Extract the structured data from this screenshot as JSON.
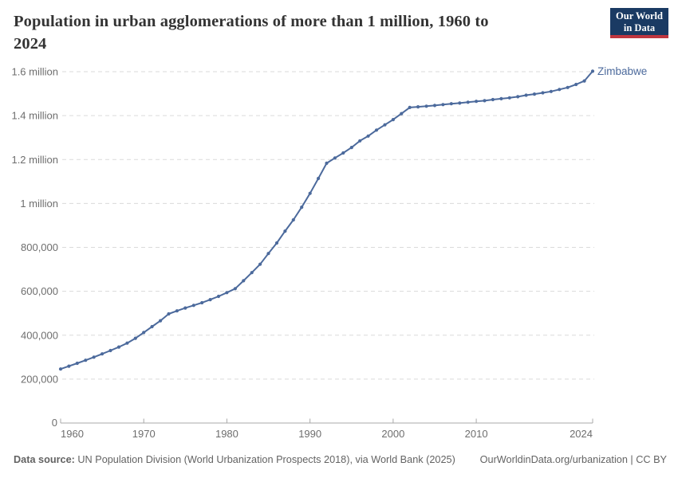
{
  "header": {
    "title_line1": "Population in urban agglomerations of more than 1 million, 1960 to",
    "title_line2": "2024",
    "logo": {
      "line1": "Our World",
      "line2": "in Data"
    }
  },
  "footer": {
    "source_label": "Data source:",
    "source_text": " UN Population Division (World Urbanization Prospects 2018), via World Bank (2025)",
    "right_text": "OurWorldinData.org/urbanization | CC BY"
  },
  "chart_data": {
    "type": "line",
    "title": "Population in urban agglomerations of more than 1 million, 1960 to 2024",
    "entity_label": "Zimbabwe",
    "line_color": "#4C6A9C",
    "grid": true,
    "legend_position": "end-of-line",
    "xlim": [
      1960,
      2024
    ],
    "ylim": [
      0,
      1600000
    ],
    "xticks": [
      {
        "value": 1960,
        "label": "1960"
      },
      {
        "value": 1970,
        "label": "1970"
      },
      {
        "value": 1980,
        "label": "1980"
      },
      {
        "value": 1990,
        "label": "1990"
      },
      {
        "value": 2000,
        "label": "2000"
      },
      {
        "value": 2010,
        "label": "2010"
      },
      {
        "value": 2024,
        "label": "2024"
      }
    ],
    "yticks": [
      {
        "value": 0,
        "label": "0"
      },
      {
        "value": 200000,
        "label": "200,000"
      },
      {
        "value": 400000,
        "label": "400,000"
      },
      {
        "value": 600000,
        "label": "600,000"
      },
      {
        "value": 800000,
        "label": "800,000"
      },
      {
        "value": 1000000,
        "label": "1 million"
      },
      {
        "value": 1200000,
        "label": "1.2 million"
      },
      {
        "value": 1400000,
        "label": "1.4 million"
      },
      {
        "value": 1600000,
        "label": "1.6 million"
      }
    ],
    "x": [
      1960,
      1961,
      1962,
      1963,
      1964,
      1965,
      1966,
      1967,
      1968,
      1969,
      1970,
      1971,
      1972,
      1973,
      1974,
      1975,
      1976,
      1977,
      1978,
      1979,
      1980,
      1981,
      1982,
      1983,
      1984,
      1985,
      1986,
      1987,
      1988,
      1989,
      1990,
      1991,
      1992,
      1993,
      1994,
      1995,
      1996,
      1997,
      1998,
      1999,
      2000,
      2001,
      2002,
      2003,
      2004,
      2005,
      2006,
      2007,
      2008,
      2009,
      2010,
      2011,
      2012,
      2013,
      2014,
      2015,
      2016,
      2017,
      2018,
      2019,
      2020,
      2021,
      2022,
      2023,
      2024
    ],
    "series": [
      {
        "name": "Zimbabwe",
        "values": [
          246000,
          259000,
          272000,
          286000,
          300000,
          315000,
          330000,
          346000,
          364000,
          386000,
          412000,
          439000,
          466000,
          497000,
          511000,
          524000,
          536000,
          548000,
          562000,
          577000,
          594000,
          612000,
          648000,
          685000,
          723000,
          772000,
          820000,
          874000,
          925000,
          983000,
          1046000,
          1114000,
          1183000,
          1207000,
          1230000,
          1255000,
          1285000,
          1307000,
          1334000,
          1358000,
          1382000,
          1409000,
          1437000,
          1440000,
          1443000,
          1446000,
          1450000,
          1454000,
          1457000,
          1461000,
          1465000,
          1468000,
          1473000,
          1477000,
          1481000,
          1486000,
          1493000,
          1498000,
          1504000,
          1510000,
          1519000,
          1528000,
          1542000,
          1558000,
          1602000
        ]
      }
    ]
  }
}
